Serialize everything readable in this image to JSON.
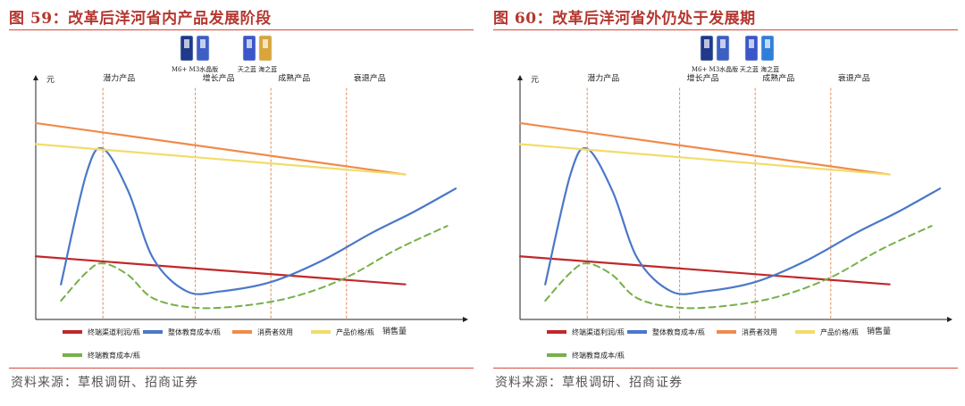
{
  "panels": [
    {
      "title": "图 59：改革后洋河省内产品发展阶段",
      "source": "资料来源：草根调研、招商证券",
      "product_groups": [
        {
          "labels": [
            "M6+",
            "M3水晶版"
          ],
          "colors": [
            "#1f3a8a",
            "#3d5fc4"
          ]
        },
        {
          "labels": [
            "天之蓝",
            "海之蓝"
          ],
          "colors": [
            "#3a56c8",
            "#d9a53a"
          ]
        }
      ]
    },
    {
      "title": "图 60：改革后洋河省外仍处于发展期",
      "source": "资料来源：草根调研、招商证券",
      "product_groups": [
        {
          "labels": [
            "M6+",
            "M3水晶版"
          ],
          "colors": [
            "#1f3a8a",
            "#3d5fc4"
          ]
        },
        {
          "labels": [
            "天之蓝",
            "海之蓝"
          ],
          "colors": [
            "#3a56c8",
            "#2f7fd9"
          ]
        }
      ]
    }
  ],
  "chart_data": [
    {
      "type": "line",
      "title": "图 59：改革后洋河省内产品发展阶段",
      "ylabel": "元",
      "xlabel": "销售量",
      "stages": [
        "潜力产品",
        "增长产品",
        "成熟产品",
        "衰退产品"
      ],
      "stage_boundaries": [
        0.16,
        0.38,
        0.56,
        0.74
      ],
      "xlim": [
        0,
        1
      ],
      "ylim": [
        0,
        1
      ],
      "grid": false,
      "legend_position": "bottom",
      "series": [
        {
          "name": "终端渠道利润/瓶",
          "color": "#c0282b",
          "style": "solid",
          "x": [
            0.0,
            0.88
          ],
          "y": [
            0.27,
            0.15
          ]
        },
        {
          "name": "整体教育成本/瓶",
          "color": "#4a78c8",
          "style": "solid",
          "x": [
            0.06,
            0.12,
            0.16,
            0.22,
            0.28,
            0.36,
            0.44,
            0.56,
            0.68,
            0.8,
            0.9,
            1.0
          ],
          "y": [
            0.15,
            0.62,
            0.73,
            0.55,
            0.26,
            0.12,
            0.12,
            0.16,
            0.25,
            0.37,
            0.46,
            0.56
          ]
        },
        {
          "name": "消费者效用",
          "color": "#f08a4b",
          "style": "solid",
          "x": [
            0.0,
            0.88
          ],
          "y": [
            0.84,
            0.62
          ]
        },
        {
          "name": "产品价格/瓶",
          "color": "#f2dc6a",
          "style": "solid",
          "x": [
            0.0,
            0.88
          ],
          "y": [
            0.75,
            0.62
          ]
        },
        {
          "name": "终端教育成本/瓶",
          "color": "#76b049",
          "style": "dashed",
          "x": [
            0.06,
            0.12,
            0.16,
            0.22,
            0.28,
            0.38,
            0.5,
            0.62,
            0.74,
            0.86,
            0.98
          ],
          "y": [
            0.08,
            0.2,
            0.24,
            0.19,
            0.09,
            0.05,
            0.06,
            0.1,
            0.18,
            0.3,
            0.4
          ]
        }
      ]
    },
    {
      "type": "line",
      "title": "图 60：改革后洋河省外仍处于发展期",
      "ylabel": "元",
      "xlabel": "销售量",
      "stages": [
        "潜力产品",
        "增长产品",
        "成熟产品",
        "衰退产品"
      ],
      "stage_boundaries": [
        0.16,
        0.38,
        0.56,
        0.74
      ],
      "xlim": [
        0,
        1
      ],
      "ylim": [
        0,
        1
      ],
      "grid": false,
      "legend_position": "bottom",
      "series": [
        {
          "name": "终端渠道利润/瓶",
          "color": "#c0282b",
          "style": "solid",
          "x": [
            0.0,
            0.88
          ],
          "y": [
            0.27,
            0.15
          ]
        },
        {
          "name": "整体教育成本/瓶",
          "color": "#4a78c8",
          "style": "solid",
          "x": [
            0.06,
            0.12,
            0.16,
            0.22,
            0.28,
            0.36,
            0.44,
            0.56,
            0.68,
            0.8,
            0.9,
            1.0
          ],
          "y": [
            0.15,
            0.62,
            0.73,
            0.55,
            0.26,
            0.12,
            0.12,
            0.16,
            0.25,
            0.37,
            0.46,
            0.56
          ]
        },
        {
          "name": "消费者效用",
          "color": "#f08a4b",
          "style": "solid",
          "x": [
            0.0,
            0.88
          ],
          "y": [
            0.84,
            0.62
          ]
        },
        {
          "name": "产品价格/瓶",
          "color": "#f2dc6a",
          "style": "solid",
          "x": [
            0.0,
            0.88
          ],
          "y": [
            0.75,
            0.62
          ]
        },
        {
          "name": "终端教育成本/瓶",
          "color": "#76b049",
          "style": "dashed",
          "x": [
            0.06,
            0.12,
            0.16,
            0.22,
            0.28,
            0.38,
            0.5,
            0.62,
            0.74,
            0.86,
            0.98
          ],
          "y": [
            0.08,
            0.2,
            0.24,
            0.19,
            0.09,
            0.05,
            0.06,
            0.1,
            0.18,
            0.3,
            0.4
          ]
        }
      ]
    }
  ]
}
